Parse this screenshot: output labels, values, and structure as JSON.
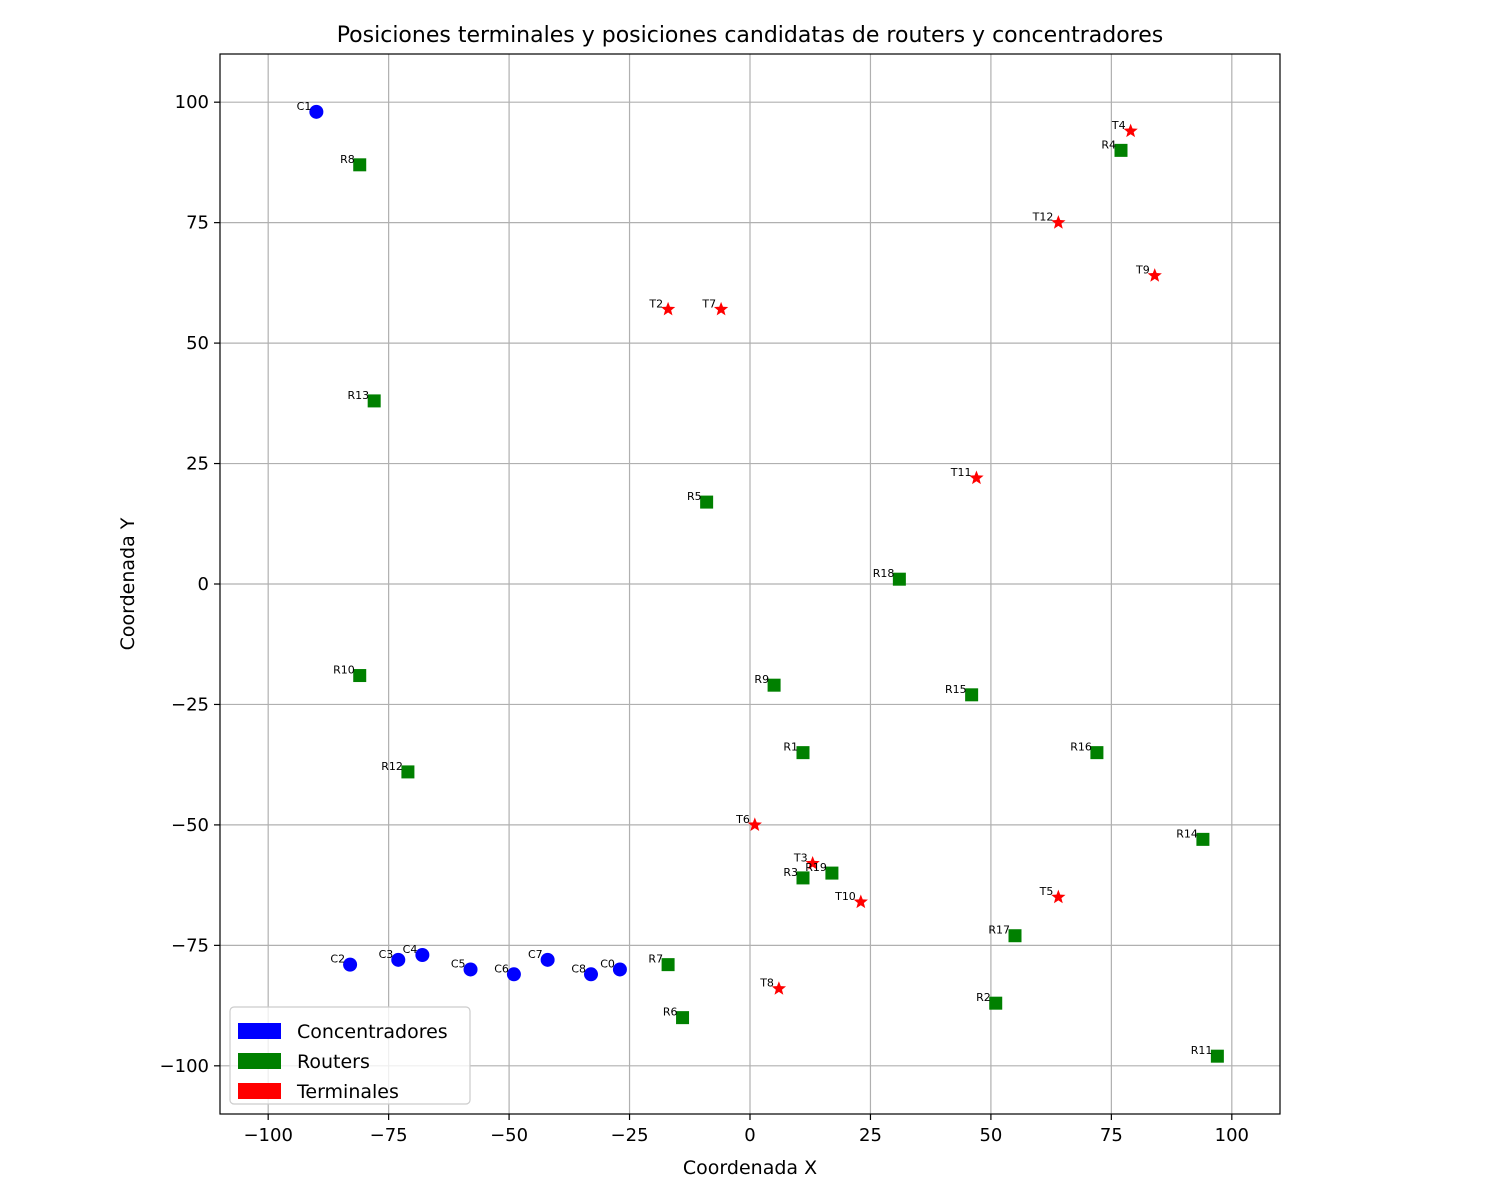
{
  "chart_data": {
    "type": "scatter",
    "title": "Posiciones terminales y posiciones candidatas de routers y concentradores",
    "xlabel": "Coordenada X",
    "ylabel": "Coordenada Y",
    "xlim": [
      -110,
      110
    ],
    "ylim": [
      -110,
      110
    ],
    "xticks": [
      -100,
      -75,
      -50,
      -25,
      0,
      25,
      50,
      75,
      100
    ],
    "yticks": [
      -100,
      -75,
      -50,
      -25,
      0,
      25,
      50,
      75,
      100
    ],
    "xtick_labels": [
      "−100",
      "−75",
      "−50",
      "−25",
      "0",
      "25",
      "50",
      "75",
      "100"
    ],
    "ytick_labels": [
      "−100",
      "−75",
      "−50",
      "−25",
      "0",
      "25",
      "50",
      "75",
      "100"
    ],
    "grid": true,
    "legend_position": "lower-left",
    "series": [
      {
        "name": "Concentradores",
        "color": "#0000ff",
        "marker": "circle",
        "points": [
          {
            "label": "C0",
            "x": -27,
            "y": -80
          },
          {
            "label": "C1",
            "x": -90,
            "y": 98
          },
          {
            "label": "C2",
            "x": -83,
            "y": -79
          },
          {
            "label": "C3",
            "x": -73,
            "y": -78
          },
          {
            "label": "C4",
            "x": -68,
            "y": -77
          },
          {
            "label": "C5",
            "x": -58,
            "y": -80
          },
          {
            "label": "C6",
            "x": -49,
            "y": -81
          },
          {
            "label": "C7",
            "x": -42,
            "y": -78
          },
          {
            "label": "C8",
            "x": -33,
            "y": -81
          }
        ]
      },
      {
        "name": "Routers",
        "color": "#008000",
        "marker": "square",
        "points": [
          {
            "label": "R1",
            "x": 11,
            "y": -35
          },
          {
            "label": "R2",
            "x": 51,
            "y": -87
          },
          {
            "label": "R3",
            "x": 11,
            "y": -61
          },
          {
            "label": "R4",
            "x": 77,
            "y": 90
          },
          {
            "label": "R5",
            "x": -9,
            "y": 17
          },
          {
            "label": "R6",
            "x": -14,
            "y": -90
          },
          {
            "label": "R7",
            "x": -17,
            "y": -79
          },
          {
            "label": "R8",
            "x": -81,
            "y": 87
          },
          {
            "label": "R9",
            "x": 5,
            "y": -21
          },
          {
            "label": "R10",
            "x": -81,
            "y": -19
          },
          {
            "label": "R11",
            "x": 97,
            "y": -98
          },
          {
            "label": "R12",
            "x": -71,
            "y": -39
          },
          {
            "label": "R13",
            "x": -78,
            "y": 38
          },
          {
            "label": "R14",
            "x": 94,
            "y": -53
          },
          {
            "label": "R15",
            "x": 46,
            "y": -23
          },
          {
            "label": "R16",
            "x": 72,
            "y": -35
          },
          {
            "label": "R17",
            "x": 55,
            "y": -73
          },
          {
            "label": "R18",
            "x": 31,
            "y": 1
          },
          {
            "label": "R19",
            "x": 17,
            "y": -60
          }
        ]
      },
      {
        "name": "Terminales",
        "color": "#ff0000",
        "marker": "star",
        "points": [
          {
            "label": "T2",
            "x": -17,
            "y": 57
          },
          {
            "label": "T3",
            "x": 13,
            "y": -58
          },
          {
            "label": "T4",
            "x": 79,
            "y": 94
          },
          {
            "label": "T5",
            "x": 64,
            "y": -65
          },
          {
            "label": "T6",
            "x": 1,
            "y": -50
          },
          {
            "label": "T7",
            "x": -6,
            "y": 57
          },
          {
            "label": "T8",
            "x": 6,
            "y": -84
          },
          {
            "label": "T9",
            "x": 84,
            "y": 64
          },
          {
            "label": "T10",
            "x": 23,
            "y": -66
          },
          {
            "label": "T11",
            "x": 47,
            "y": 22
          },
          {
            "label": "T12",
            "x": 64,
            "y": 75
          }
        ]
      }
    ]
  }
}
